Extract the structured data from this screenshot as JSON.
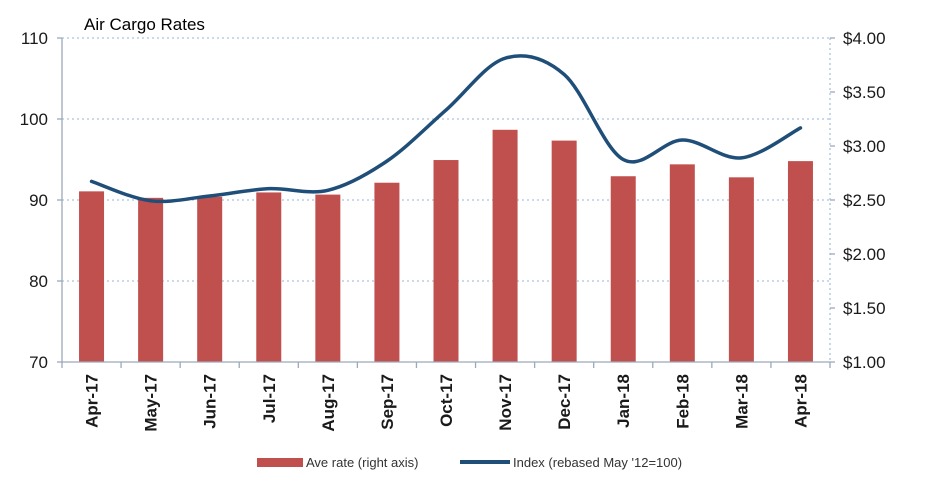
{
  "chart_data": {
    "type": "bar+line",
    "title": "Air Cargo Rates",
    "categories": [
      "Apr-17",
      "May-17",
      "Jun-17",
      "Jul-17",
      "Aug-17",
      "Sep-17",
      "Oct-17",
      "Nov-17",
      "Dec-17",
      "Jan-18",
      "Feb-18",
      "Mar-18",
      "Apr-18"
    ],
    "series": [
      {
        "name": "Ave rate (right axis)",
        "type": "bar",
        "axis": "right",
        "color": "#c0504d",
        "values": [
          2.58,
          2.52,
          2.53,
          2.57,
          2.55,
          2.66,
          2.87,
          3.15,
          3.05,
          2.72,
          2.83,
          2.71,
          2.86
        ]
      },
      {
        "name": "Index (rebased May '12=100)",
        "type": "line",
        "axis": "left",
        "color": "#1f4e79",
        "values": [
          92.3,
          89.9,
          90.5,
          91.4,
          91.2,
          94.8,
          101.1,
          107.5,
          105.5,
          95.0,
          97.4,
          95.2,
          98.9
        ]
      }
    ],
    "y_left": {
      "ylim": [
        70,
        110
      ],
      "ticks": [
        "70",
        "80",
        "90",
        "100",
        "110"
      ]
    },
    "y_right": {
      "ylim": [
        1.0,
        4.0
      ],
      "ticks": [
        "$1.00",
        "$1.50",
        "$2.00",
        "$2.50",
        "$3.00",
        "$3.50",
        "$4.00"
      ]
    },
    "grid": "horizontal dotted",
    "legend_position": "bottom"
  }
}
